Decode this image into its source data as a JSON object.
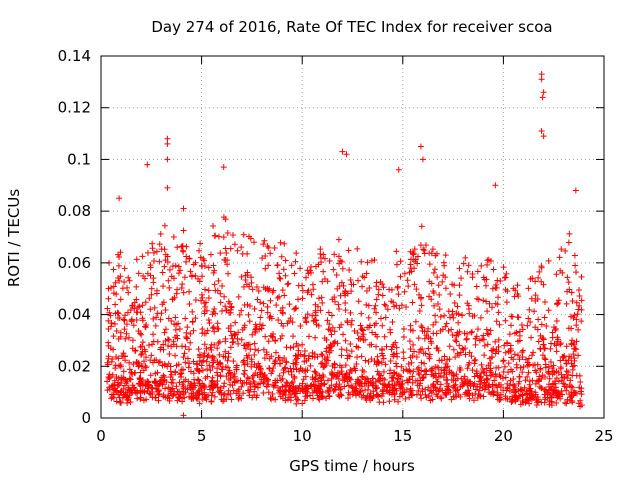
{
  "chart_data": {
    "type": "scatter",
    "title": "Day 274 of 2016, Rate Of TEC Index for receiver scoa",
    "xlabel": "GPS time / hours",
    "ylabel": "ROTI / TECUs",
    "xlim": [
      0,
      25
    ],
    "ylim": [
      0,
      0.14
    ],
    "xticks": [
      0,
      5,
      10,
      15,
      20,
      25
    ],
    "xtick_labels": [
      "0",
      "5",
      "10",
      "15",
      "20",
      "25"
    ],
    "yticks": [
      0,
      0.02,
      0.04,
      0.06,
      0.08,
      0.1,
      0.12,
      0.14
    ],
    "ytick_labels": [
      "0",
      "0.02",
      "0.04",
      "0.06",
      "0.08",
      "0.1",
      "0.12",
      "0.14"
    ],
    "grid": true,
    "marker": "+",
    "marker_color": "#ff0000",
    "x_data_range": [
      0.3,
      23.9
    ],
    "notable_points": [
      {
        "x": 21.9,
        "y": 0.133
      },
      {
        "x": 21.9,
        "y": 0.131
      },
      {
        "x": 22.0,
        "y": 0.126
      },
      {
        "x": 21.95,
        "y": 0.124
      },
      {
        "x": 21.9,
        "y": 0.111
      },
      {
        "x": 22.0,
        "y": 0.109
      },
      {
        "x": 3.3,
        "y": 0.108
      },
      {
        "x": 3.3,
        "y": 0.106
      },
      {
        "x": 15.9,
        "y": 0.105
      },
      {
        "x": 12.0,
        "y": 0.103
      },
      {
        "x": 12.2,
        "y": 0.102
      },
      {
        "x": 3.3,
        "y": 0.1
      },
      {
        "x": 16.0,
        "y": 0.1
      },
      {
        "x": 2.3,
        "y": 0.098
      },
      {
        "x": 6.1,
        "y": 0.097
      },
      {
        "x": 14.8,
        "y": 0.096
      },
      {
        "x": 3.3,
        "y": 0.089
      },
      {
        "x": 23.6,
        "y": 0.088
      },
      {
        "x": 19.6,
        "y": 0.09
      },
      {
        "x": 0.9,
        "y": 0.085
      },
      {
        "x": 4.1,
        "y": 0.081
      },
      {
        "x": 0.4,
        "y": 0.06
      },
      {
        "x": 23.9,
        "y": 0.005
      },
      {
        "x": 4.1,
        "y": 0.001
      }
    ],
    "envelope": {
      "hours": [
        0.3,
        0.5,
        1.0,
        1.5,
        2.0,
        2.5,
        3.0,
        3.5,
        4.0,
        4.5,
        5.0,
        5.5,
        6.0,
        6.5,
        7.0,
        7.5,
        8.0,
        8.5,
        9.0,
        9.5,
        10.0,
        10.5,
        11.0,
        11.5,
        12.0,
        12.5,
        13.0,
        13.5,
        14.0,
        14.5,
        15.0,
        15.5,
        16.0,
        16.5,
        17.0,
        17.5,
        18.0,
        18.5,
        19.0,
        19.5,
        20.0,
        20.5,
        21.0,
        21.5,
        22.0,
        22.5,
        23.0,
        23.5,
        23.9
      ],
      "typical_max": [
        0.045,
        0.06,
        0.07,
        0.055,
        0.065,
        0.07,
        0.075,
        0.07,
        0.075,
        0.065,
        0.07,
        0.072,
        0.078,
        0.074,
        0.07,
        0.073,
        0.076,
        0.07,
        0.068,
        0.065,
        0.063,
        0.062,
        0.065,
        0.07,
        0.078,
        0.065,
        0.06,
        0.062,
        0.058,
        0.06,
        0.068,
        0.065,
        0.078,
        0.065,
        0.07,
        0.06,
        0.068,
        0.062,
        0.064,
        0.06,
        0.058,
        0.052,
        0.05,
        0.055,
        0.065,
        0.055,
        0.072,
        0.075,
        0.06
      ],
      "baseline": [
        0.012,
        0.01,
        0.008,
        0.008,
        0.009,
        0.01,
        0.01,
        0.01,
        0.009,
        0.008,
        0.008,
        0.009,
        0.01,
        0.011,
        0.01,
        0.011,
        0.011,
        0.01,
        0.01,
        0.009,
        0.008,
        0.009,
        0.01,
        0.011,
        0.012,
        0.011,
        0.01,
        0.01,
        0.01,
        0.009,
        0.01,
        0.01,
        0.011,
        0.011,
        0.011,
        0.01,
        0.01,
        0.01,
        0.01,
        0.009,
        0.009,
        0.009,
        0.008,
        0.008,
        0.008,
        0.008,
        0.007,
        0.007,
        0.007
      ]
    }
  }
}
